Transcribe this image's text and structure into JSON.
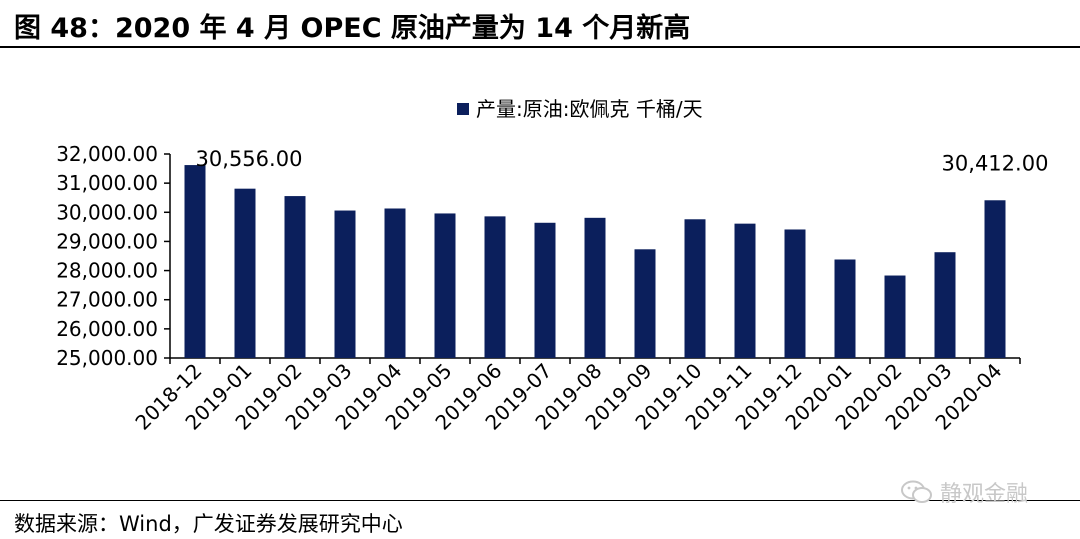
{
  "figure": {
    "title": "图 48：2020 年 4 月 OPEC 原油产量为 14 个月新高",
    "source": "数据来源：Wind，广发证券发展研究中心",
    "watermark": "静观金融"
  },
  "chart_data": {
    "type": "bar",
    "title": "",
    "xlabel": "",
    "ylabel": "",
    "legend": {
      "position": "top-center"
    },
    "ylim": [
      25000,
      32000
    ],
    "yticks": [
      "25,000.00",
      "26,000.00",
      "27,000.00",
      "28,000.00",
      "29,000.00",
      "30,000.00",
      "31,000.00",
      "32,000.00"
    ],
    "categories": [
      "2018-12",
      "2019-01",
      "2019-02",
      "2019-03",
      "2019-04",
      "2019-05",
      "2019-06",
      "2019-07",
      "2019-08",
      "2019-09",
      "2019-10",
      "2019-11",
      "2019-12",
      "2020-01",
      "2020-02",
      "2020-03",
      "2020-04"
    ],
    "series": [
      {
        "name": "产量:原油:欧佩克 千桶/天",
        "color": "#0b1f5c",
        "values": [
          31620,
          30810,
          30556,
          30060,
          30130,
          29960,
          29860,
          29640,
          29810,
          28730,
          29760,
          29610,
          29410,
          28380,
          27830,
          28630,
          30412
        ]
      }
    ],
    "annotations": [
      {
        "category": "2019-02",
        "text": "30,556.00"
      },
      {
        "category": "2020-04",
        "text": "30,412.00"
      }
    ],
    "grid": false
  }
}
